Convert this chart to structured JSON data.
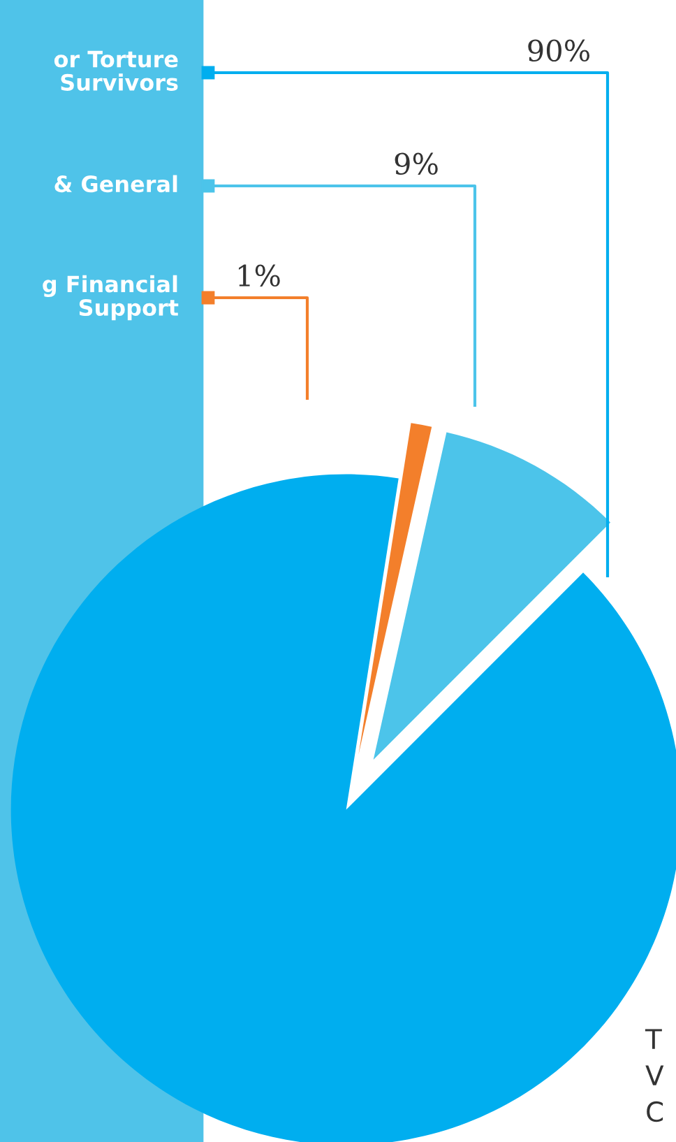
{
  "chart_data": {
    "type": "pie",
    "categories": [
      "or Torture\nSurvivors",
      "& General",
      "g Financial\nSupport"
    ],
    "values": [
      90,
      9,
      1
    ],
    "colors": [
      "#00aeef",
      "#4cc4ea",
      "#f37f2b"
    ],
    "value_labels": [
      "90%",
      "9%",
      "1%"
    ],
    "annotations": [
      "T",
      "V",
      "C"
    ],
    "legend": "top left"
  }
}
